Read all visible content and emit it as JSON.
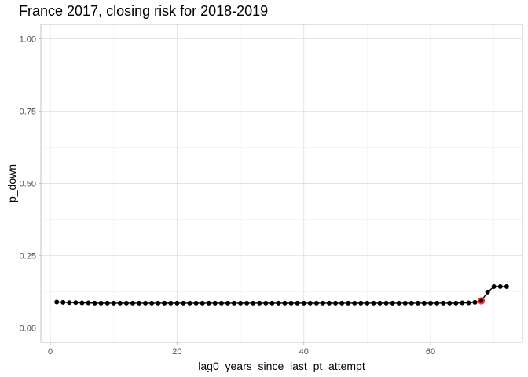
{
  "chart_data": {
    "type": "line",
    "title": "France 2017, closing risk for 2018-2019",
    "xlabel": "lag0_years_since_last_pt_attempt",
    "ylabel": "p_down",
    "xlim": [
      -1.5,
      74.5
    ],
    "ylim": [
      -0.05,
      1.05
    ],
    "x_ticks": [
      0,
      20,
      40,
      60
    ],
    "x_tick_labels": [
      "0",
      "20",
      "40",
      "60"
    ],
    "y_ticks": [
      0,
      0.25,
      0.5,
      0.75,
      1
    ],
    "y_tick_labels": [
      "0.00",
      "0.25",
      "0.50",
      "0.75",
      "1.00"
    ],
    "grid": true,
    "theme": "light",
    "series": [
      {
        "color": "#000000",
        "x": [
          1,
          2,
          3,
          4,
          5,
          6,
          7,
          8,
          9,
          10,
          11,
          12,
          13,
          14,
          15,
          16,
          17,
          18,
          19,
          20,
          21,
          22,
          23,
          24,
          25,
          26,
          27,
          28,
          29,
          30,
          31,
          32,
          33,
          34,
          35,
          36,
          37,
          38,
          39,
          40,
          41,
          42,
          43,
          44,
          45,
          46,
          47,
          48,
          49,
          50,
          51,
          52,
          53,
          54,
          55,
          56,
          57,
          58,
          59,
          60,
          61,
          62,
          63,
          64,
          65,
          66,
          67,
          68,
          69,
          70,
          71,
          72
        ],
        "y": [
          0.09,
          0.089,
          0.088,
          0.088,
          0.087,
          0.087,
          0.086,
          0.086,
          0.086,
          0.086,
          0.086,
          0.086,
          0.086,
          0.086,
          0.086,
          0.086,
          0.086,
          0.086,
          0.086,
          0.086,
          0.086,
          0.086,
          0.086,
          0.086,
          0.086,
          0.086,
          0.086,
          0.086,
          0.086,
          0.086,
          0.086,
          0.086,
          0.086,
          0.086,
          0.086,
          0.086,
          0.086,
          0.086,
          0.086,
          0.086,
          0.086,
          0.086,
          0.086,
          0.086,
          0.086,
          0.086,
          0.086,
          0.086,
          0.086,
          0.086,
          0.086,
          0.086,
          0.086,
          0.086,
          0.086,
          0.086,
          0.086,
          0.086,
          0.086,
          0.086,
          0.086,
          0.086,
          0.086,
          0.086,
          0.087,
          0.087,
          0.089,
          0.094,
          0.124,
          0.143,
          0.143,
          0.143
        ]
      }
    ],
    "highlight": {
      "x": 68,
      "y": 0.094,
      "color": "#e8192c"
    }
  }
}
